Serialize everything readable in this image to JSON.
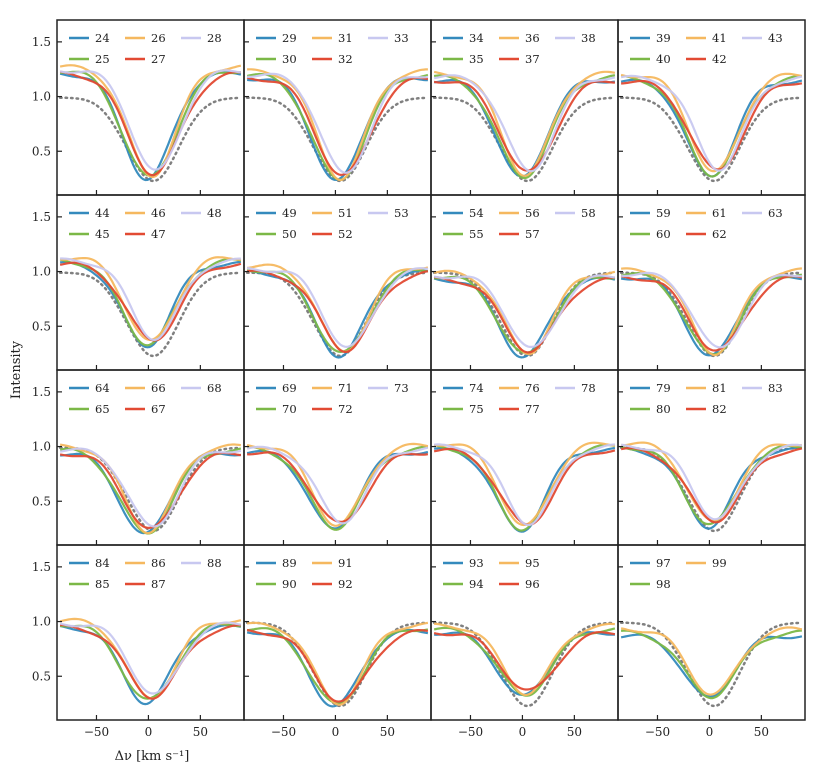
{
  "figure": {
    "ylabel": "Intensity",
    "xlabel": "Δν [km s⁻¹]"
  },
  "chart_data": {
    "type": "line",
    "xlim": [
      -88,
      92
    ],
    "ylim": [
      0.1,
      1.7
    ],
    "xticks": [
      -50,
      0,
      50
    ],
    "xtick_labels": [
      "−50",
      "0",
      "50"
    ],
    "yticks": [
      0.5,
      1.0,
      1.5
    ],
    "ytick_labels": [
      "0.5",
      "1.0",
      "1.5"
    ],
    "colors": [
      "#348ABD",
      "#7BB847",
      "#F5B85F",
      "#E24A33",
      "#C8C8F0"
    ],
    "reference": {
      "style": "dotted",
      "color": "#808080"
    },
    "panels": [
      {
        "series": [
          "24",
          "25",
          "26",
          "27",
          "28"
        ],
        "center": 3,
        "depth": 0.24,
        "cont": 1.24,
        "ref": true
      },
      {
        "series": [
          "29",
          "30",
          "31",
          "32",
          "33"
        ],
        "center": 5,
        "depth": 0.22,
        "cont": 1.2,
        "ref": true
      },
      {
        "series": [
          "34",
          "35",
          "36",
          "37",
          "38"
        ],
        "center": 3,
        "depth": 0.25,
        "cont": 1.18,
        "ref": true
      },
      {
        "series": [
          "39",
          "40",
          "41",
          "42",
          "43"
        ],
        "center": 5,
        "depth": 0.27,
        "cont": 1.17,
        "ref": true
      },
      {
        "series": [
          "44",
          "45",
          "46",
          "47",
          "48"
        ],
        "center": 2,
        "depth": 0.32,
        "cont": 1.1,
        "ref": true
      },
      {
        "series": [
          "49",
          "50",
          "51",
          "52",
          "53"
        ],
        "center": 8,
        "depth": 0.23,
        "cont": 1.02,
        "ref": true
      },
      {
        "series": [
          "54",
          "55",
          "56",
          "57",
          "58"
        ],
        "center": 5,
        "depth": 0.22,
        "cont": 0.96,
        "ref": true
      },
      {
        "series": [
          "59",
          "60",
          "61",
          "62",
          "63"
        ],
        "center": 5,
        "depth": 0.22,
        "cont": 0.98,
        "ref": true
      },
      {
        "series": [
          "64",
          "65",
          "66",
          "67",
          "68"
        ],
        "center": 0,
        "depth": 0.19,
        "cont": 0.97,
        "ref": true
      },
      {
        "series": [
          "69",
          "70",
          "71",
          "72",
          "73"
        ],
        "center": 2,
        "depth": 0.24,
        "cont": 0.98,
        "ref": false
      },
      {
        "series": [
          "74",
          "75",
          "76",
          "77",
          "78"
        ],
        "center": 2,
        "depth": 0.23,
        "cont": 1.0,
        "ref": false
      },
      {
        "series": [
          "79",
          "80",
          "81",
          "82",
          "83"
        ],
        "center": 3,
        "depth": 0.27,
        "cont": 1.0,
        "ref": true
      },
      {
        "series": [
          "84",
          "85",
          "86",
          "87",
          "88"
        ],
        "center": 2,
        "depth": 0.26,
        "cont": 0.98,
        "ref": false
      },
      {
        "series": [
          "89",
          "90",
          "91",
          "92"
        ],
        "center": 3,
        "depth": 0.22,
        "cont": 0.94,
        "ref": true
      },
      {
        "series": [
          "93",
          "94",
          "95",
          "96"
        ],
        "center": 4,
        "depth": 0.31,
        "cont": 0.93,
        "ref": true
      },
      {
        "series": [
          "97",
          "98",
          "99"
        ],
        "center": 3,
        "depth": 0.3,
        "cont": 0.9,
        "ref": true
      }
    ]
  }
}
